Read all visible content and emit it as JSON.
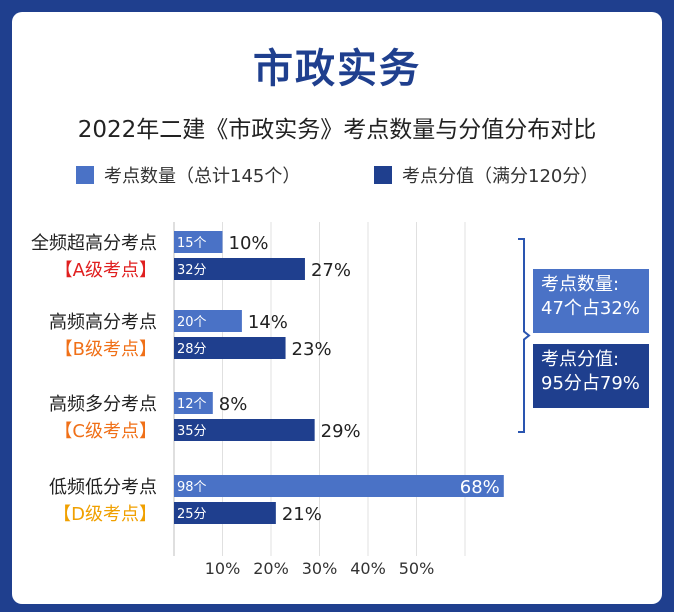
{
  "title": "市政实务",
  "subtitle": "2022年二建《市政实务》考点数量与分值分布对比",
  "legend": [
    {
      "label": "考点数量（总计145个）",
      "color": "#4a72c6"
    },
    {
      "label": "考点分值（满分120分）",
      "color": "#1f3f8e"
    }
  ],
  "summary": {
    "count_box": {
      "line1": "考点数量:",
      "line2": "47个占32%"
    },
    "score_box": {
      "line1": "考点分值:",
      "line2": "95分占79%"
    }
  },
  "chart_data": {
    "type": "bar",
    "orientation": "horizontal",
    "categories": [
      {
        "name": "全频超高分考点",
        "level": "【A级考点】",
        "level_color": "#e02020"
      },
      {
        "name": "高频高分考点",
        "level": "【B级考点】",
        "level_color": "#f07018"
      },
      {
        "name": "高频多分考点",
        "level": "【C级考点】",
        "level_color": "#f07018"
      },
      {
        "name": "低频低分考点",
        "level": "【D级考点】",
        "level_color": "#f0a000"
      }
    ],
    "series": [
      {
        "name": "考点数量（总计145个）",
        "color": "#4a72c6",
        "values": [
          10,
          14,
          8,
          68
        ],
        "inner_labels": [
          "15个",
          "20个",
          "12个",
          "98个"
        ],
        "value_labels": [
          "10%",
          "14%",
          "8%",
          "68%"
        ]
      },
      {
        "name": "考点分值（满分120分）",
        "color": "#1f3f8e",
        "values": [
          27,
          23,
          29,
          21
        ],
        "inner_labels": [
          "32分",
          "28分",
          "35分",
          "25分"
        ],
        "value_labels": [
          "27%",
          "23%",
          "29%",
          "21%"
        ]
      }
    ],
    "x_ticks": [
      "10%",
      "20%",
      "30%",
      "40%",
      "50%"
    ],
    "xlim": [
      0,
      60
    ],
    "grid": true
  }
}
